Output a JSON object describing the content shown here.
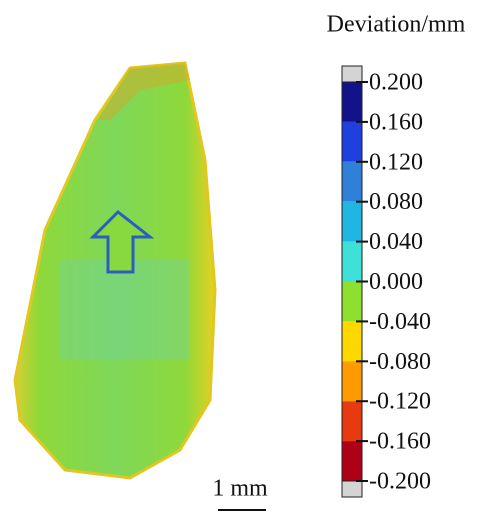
{
  "colorbar": {
    "title": "Deviation/mm",
    "ticks": [
      {
        "value": 0.2,
        "label": "0.200"
      },
      {
        "value": 0.16,
        "label": "0.160"
      },
      {
        "value": 0.12,
        "label": "0.120"
      },
      {
        "value": 0.08,
        "label": "0.080"
      },
      {
        "value": 0.04,
        "label": "0.040"
      },
      {
        "value": 0,
        "label": "0.000"
      },
      {
        "value": -0.04,
        "label": "-0.040"
      },
      {
        "value": -0.08,
        "label": "-0.080"
      },
      {
        "value": -0.12,
        "label": "-0.120"
      },
      {
        "value": -0.16,
        "label": "-0.160"
      },
      {
        "value": -0.2,
        "label": "-0.200"
      }
    ],
    "colors": [
      "#12128a",
      "#1f3fe0",
      "#2f80d8",
      "#20b6e4",
      "#3fe0d8",
      "#8ee030",
      "#ffd800",
      "#ff9a00",
      "#e83a10",
      "#b00018"
    ]
  },
  "scale_bar": {
    "label": "1 mm"
  }
}
